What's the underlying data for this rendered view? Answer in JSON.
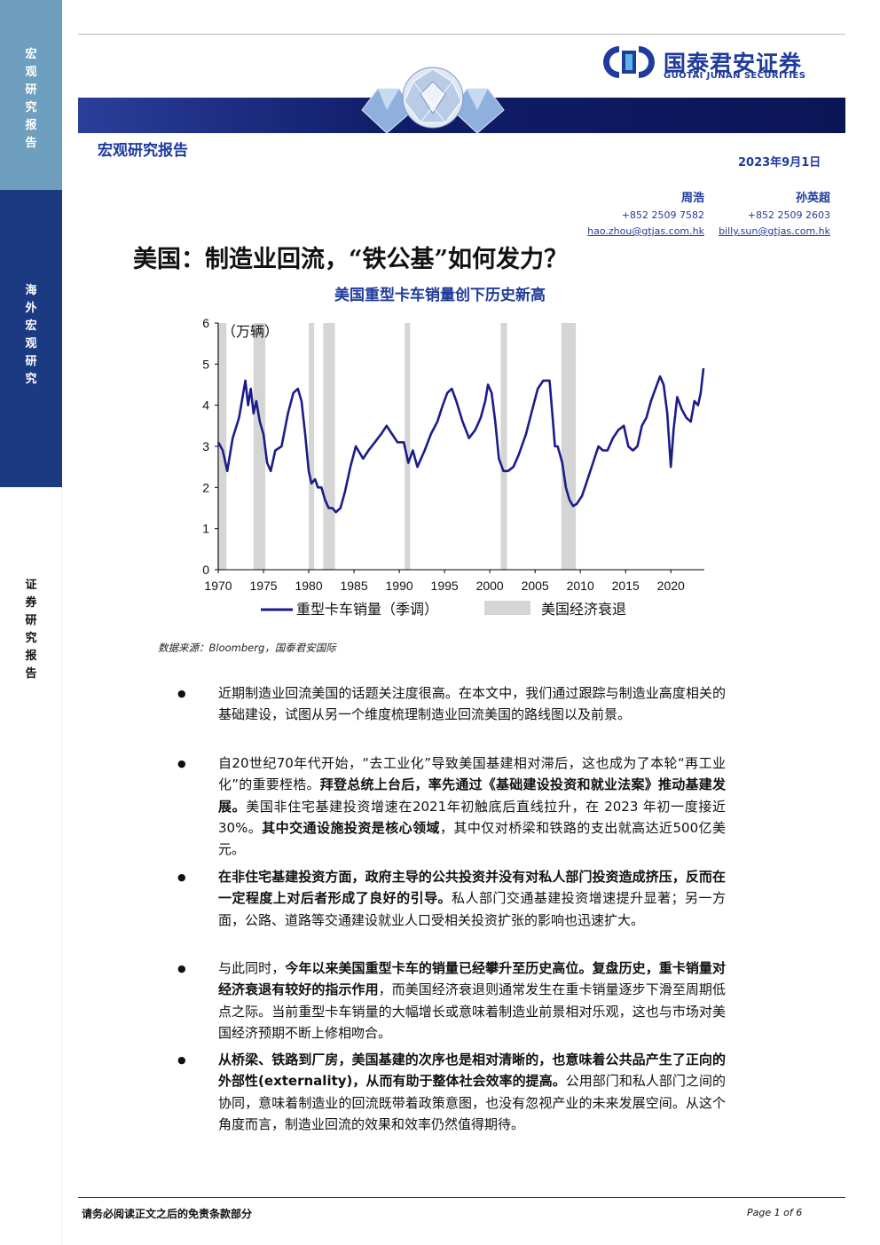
{
  "sidebar": {
    "sections": [
      {
        "label": "宏观研究报告",
        "color": "#6f9fbe"
      },
      {
        "label": "海外宏观研究",
        "color": "#1b3a82"
      },
      {
        "label": "证券研究报告",
        "color": "#ffffff"
      }
    ]
  },
  "header": {
    "logo_cn": "国泰君安证券",
    "logo_en": "GUOTAI JUNAN SECURITIES",
    "report_type": "宏观研究报告",
    "date": "2023年9月1日",
    "authors": [
      {
        "name": "周浩",
        "phone": "+852 2509 7582",
        "email": "hao.zhou@gtjas.com.hk"
      },
      {
        "name": "孙英超",
        "phone": "+852 2509 2603",
        "email": "billy.sun@gtjas.com.hk"
      }
    ]
  },
  "title": "美国：制造业回流，“铁公基”如何发力？",
  "chart_data": {
    "type": "line",
    "title": "美国重型卡车销量创下历史新高",
    "unit_label": "（万辆）",
    "xlim": [
      1970,
      2023.7
    ],
    "ylim": [
      0,
      6
    ],
    "x_ticks": [
      "1970",
      "1975",
      "1980",
      "1985",
      "1990",
      "1995",
      "2000",
      "2005",
      "2010",
      "2015",
      "2020"
    ],
    "y_ticks": [
      "0",
      "1",
      "2",
      "3",
      "4",
      "5",
      "6"
    ],
    "series": [
      {
        "name": "重型卡车销量（季调）",
        "color": "#1c1c8a",
        "x": [
          1970.0,
          1970.5,
          1971.0,
          1971.6,
          1972.3,
          1973.0,
          1973.3,
          1973.6,
          1973.9,
          1974.2,
          1974.6,
          1975.0,
          1975.4,
          1975.8,
          1976.3,
          1977.0,
          1977.7,
          1978.3,
          1978.8,
          1979.2,
          1979.6,
          1980.0,
          1980.3,
          1980.7,
          1981.0,
          1981.4,
          1981.8,
          1982.2,
          1982.6,
          1983.0,
          1983.5,
          1984.0,
          1984.6,
          1985.2,
          1986.0,
          1986.6,
          1987.3,
          1988.0,
          1988.6,
          1989.2,
          1989.8,
          1990.5,
          1991.0,
          1991.5,
          1992.0,
          1992.8,
          1993.5,
          1994.2,
          1994.8,
          1995.3,
          1995.8,
          1996.3,
          1997.0,
          1997.7,
          1998.4,
          1999.0,
          1999.5,
          1999.8,
          2000.2,
          2000.6,
          2001.0,
          2001.5,
          2002.0,
          2002.6,
          2003.2,
          2004.0,
          2004.7,
          2005.3,
          2005.9,
          2006.3,
          2006.6,
          2006.9,
          2007.2,
          2007.5,
          2008.0,
          2008.4,
          2008.8,
          2009.2,
          2009.6,
          2010.2,
          2010.8,
          2011.4,
          2012.0,
          2012.5,
          2013.0,
          2013.6,
          2014.2,
          2014.8,
          2015.3,
          2015.8,
          2016.3,
          2016.8,
          2017.3,
          2017.8,
          2018.3,
          2018.8,
          2019.2,
          2019.6,
          2020.0,
          2020.3,
          2020.7,
          2021.2,
          2021.7,
          2022.2,
          2022.6,
          2023.0,
          2023.3,
          2023.6
        ],
        "y": [
          3.1,
          2.9,
          2.4,
          3.2,
          3.7,
          4.6,
          4.0,
          4.4,
          3.8,
          4.1,
          3.6,
          3.3,
          2.6,
          2.4,
          2.9,
          3.0,
          3.8,
          4.3,
          4.4,
          4.1,
          3.3,
          2.4,
          2.1,
          2.2,
          2.0,
          2.0,
          1.7,
          1.5,
          1.5,
          1.4,
          1.5,
          1.9,
          2.5,
          3.0,
          2.7,
          2.9,
          3.1,
          3.3,
          3.5,
          3.3,
          3.1,
          3.1,
          2.6,
          2.9,
          2.5,
          2.9,
          3.3,
          3.6,
          4.0,
          4.3,
          4.4,
          4.1,
          3.6,
          3.2,
          3.4,
          3.7,
          4.1,
          4.5,
          4.3,
          3.6,
          2.7,
          2.4,
          2.4,
          2.5,
          2.8,
          3.3,
          3.9,
          4.4,
          4.6,
          4.6,
          4.6,
          3.8,
          3.0,
          3.0,
          2.6,
          2.0,
          1.7,
          1.55,
          1.6,
          1.8,
          2.2,
          2.6,
          3.0,
          2.9,
          2.9,
          3.2,
          3.4,
          3.5,
          3.0,
          2.9,
          3.0,
          3.5,
          3.7,
          4.1,
          4.4,
          4.7,
          4.5,
          3.8,
          2.5,
          3.4,
          4.2,
          3.9,
          3.7,
          3.6,
          4.1,
          4.0,
          4.3,
          4.9
        ]
      },
      {
        "name": "美国经济衰退",
        "color": "#d5d5d5"
      }
    ],
    "recessions": [
      [
        1969.9,
        1970.9
      ],
      [
        1973.9,
        1975.2
      ],
      [
        1980.0,
        1980.6
      ],
      [
        1981.6,
        1982.9
      ],
      [
        1990.6,
        1991.2
      ],
      [
        2001.2,
        2001.9
      ],
      [
        2007.9,
        2009.5
      ]
    ]
  },
  "source": "数据来源：Bloomberg，国泰君安国际",
  "bullets": [
    {
      "html": "近期制造业回流美国的话题关注度很高。在本文中，我们通过跟踪与制造业高度相关的基础建设，试图从另一个维度梳理制造业回流美国的路线图以及前景。"
    },
    {
      "html": "自20世纪70年代开始，“去工业化”导致美国基建相对滞后，这也成为了本轮“再工业化”的重要桎梏。<b>拜登总统上台后，率先通过《基础建设投资和就业法案》推动基建发展。</b>美国非住宅基建投资增速在2021年初触底后直线拉升，在 2023 年初一度接近 30%。<b>其中交通设施投资是核心领域</b>，其中仅对桥梁和铁路的支出就高达近500亿美元。"
    },
    {
      "html": "<b>在非住宅基建投资方面，政府主导的公共投资并没有对私人部门投资造成挤压，反而在一定程度上对后者形成了良好的引导。</b>私人部门交通基建投资增速提升显著；另一方面，公路、道路等交通建设就业人口受相关投资扩张的影响也迅速扩大。"
    },
    {
      "html": "与此同时，<b>今年以来美国重型卡车的销量已经攀升至历史高位。复盘历史，重卡销量对经济衰退有较好的指示作用</b>，而美国经济衰退则通常发生在重卡销量逐步下滑至周期低点之际。当前重型卡车销量的大幅增长或意味着制造业前景相对乐观，这也与市场对美国经济预期不断上修相吻合。"
    },
    {
      "html": "<b>从桥梁、铁路到厂房，美国基建的次序也是相对清晰的，也意味着公共品产生了正向的外部性(externality)，从而有助于整体社会效率的提高。</b>公用部门和私人部门之间的协同，意味着制造业的回流既带着政策意图，也没有忽视产业的未来发展空间。从这个角度而言，制造业回流的效果和效率仍然值得期待。"
    }
  ],
  "footer": {
    "disclaimer": "请务必阅读正文之后的免责条款部分",
    "page": "Page 1 of 6"
  }
}
